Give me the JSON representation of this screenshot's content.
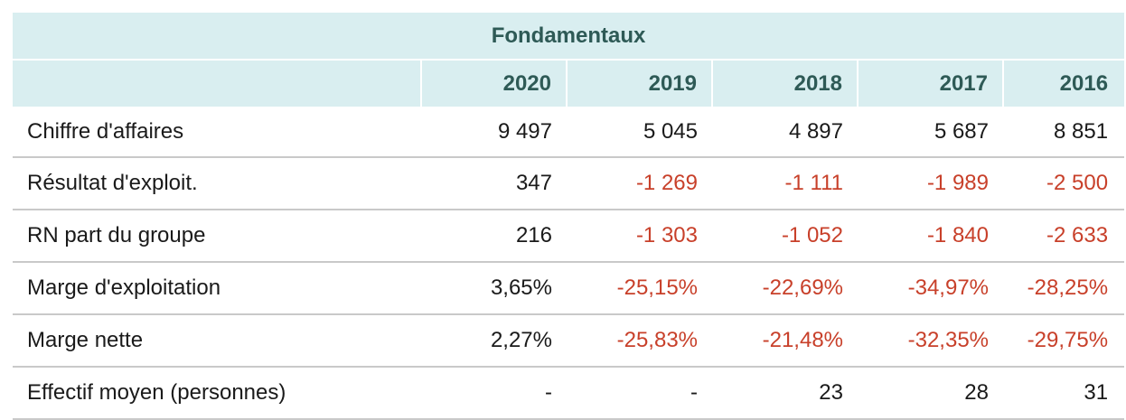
{
  "table": {
    "title": "Fondamentaux",
    "years": [
      "2020",
      "2019",
      "2018",
      "2017",
      "2016"
    ],
    "rows": [
      {
        "label": "Chiffre d'affaires",
        "values": [
          "9 497",
          "5 045",
          "4 897",
          "5 687",
          "8 851"
        ],
        "negative": [
          false,
          false,
          false,
          false,
          false
        ]
      },
      {
        "label": "Résultat d'exploit.",
        "values": [
          "347",
          "-1 269",
          "-1 111",
          "-1 989",
          "-2 500"
        ],
        "negative": [
          false,
          true,
          true,
          true,
          true
        ]
      },
      {
        "label": "RN part du groupe",
        "values": [
          "216",
          "-1 303",
          "-1 052",
          "-1 840",
          "-2 633"
        ],
        "negative": [
          false,
          true,
          true,
          true,
          true
        ]
      },
      {
        "label": "Marge d'exploitation",
        "values": [
          "3,65%",
          "-25,15%",
          "-22,69%",
          "-34,97%",
          "-28,25%"
        ],
        "negative": [
          false,
          true,
          true,
          true,
          true
        ]
      },
      {
        "label": "Marge nette",
        "values": [
          "2,27%",
          "-25,83%",
          "-21,48%",
          "-32,35%",
          "-29,75%"
        ],
        "negative": [
          false,
          true,
          true,
          true,
          true
        ]
      },
      {
        "label": "Effectif moyen (personnes)",
        "values": [
          "-",
          "-",
          "23",
          "28",
          "31"
        ],
        "negative": [
          false,
          false,
          false,
          false,
          false
        ]
      }
    ]
  },
  "colors": {
    "header_bg": "#d9eef0",
    "header_text": "#2e5a56",
    "negative_text": "#c8402a",
    "body_text": "#1a1a1a",
    "row_border": "#c9c9c9"
  }
}
